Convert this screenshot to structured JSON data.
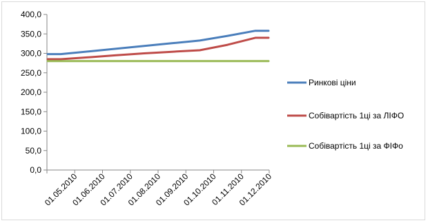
{
  "chart_data": {
    "type": "line",
    "categories": [
      "01.05.2010",
      "01.06.2010",
      "01.07.2010",
      "01.08.2010",
      "01.09.2010",
      "01.10.2010",
      "01.11.2010",
      "01.12.2010"
    ],
    "series": [
      {
        "name": "Ринкові ціни",
        "color": "#4a7ebb",
        "values": [
          298,
          305,
          312,
          319,
          326,
          333,
          345,
          358
        ]
      },
      {
        "name": "Собівартість 1ці за ЛІФО",
        "color": "#be4b48",
        "values": [
          285,
          290,
          295,
          300,
          304,
          308,
          322,
          340
        ]
      },
      {
        "name": "Собівартість 1ці за ФІФо",
        "color": "#98b954",
        "values": [
          280,
          280,
          280,
          280,
          280,
          280,
          280,
          280
        ]
      }
    ],
    "y_ticks": [
      "0,0",
      "50,0",
      "100,0",
      "150,0",
      "200,0",
      "250,0",
      "300,0",
      "350,0",
      "400,0"
    ],
    "ylim": [
      0,
      400
    ],
    "grid": false,
    "legend_position": "right"
  }
}
